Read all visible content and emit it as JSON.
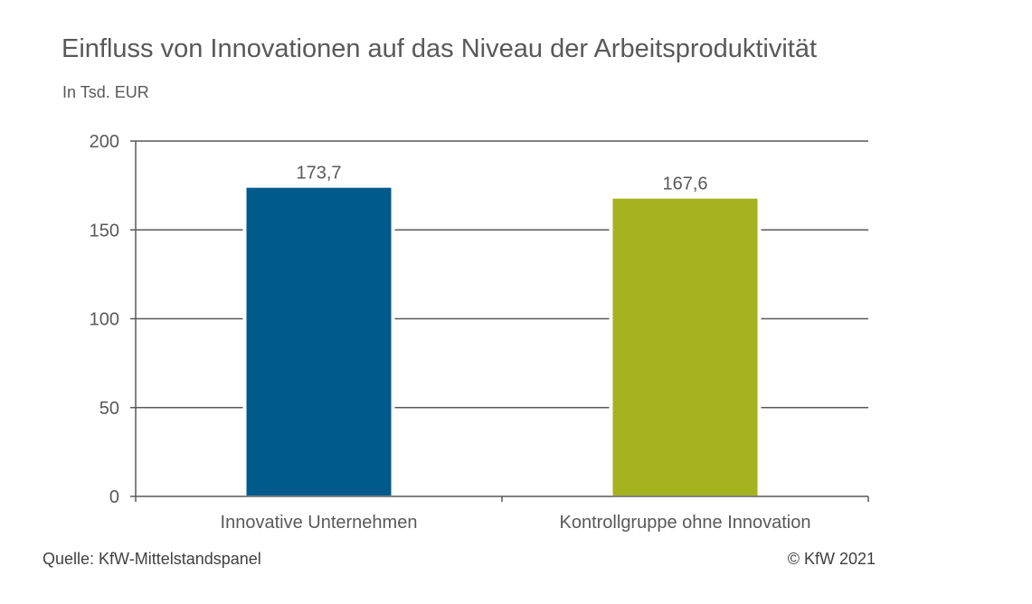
{
  "chart_data": {
    "type": "bar",
    "title": "Einfluss von Innovationen auf das Niveau der Arbeitsproduktivität",
    "subtitle": "In Tsd. EUR",
    "categories": [
      "Innovative Unternehmen",
      "Kontrollgruppe ohne Innovation"
    ],
    "values": [
      173.7,
      167.6
    ],
    "value_labels": [
      "173,7",
      "167,6"
    ],
    "bar_colors": [
      "#005A8C",
      "#A4B31E"
    ],
    "ylim": [
      0,
      200
    ],
    "yticks": [
      0,
      50,
      100,
      150,
      200
    ],
    "grid": true,
    "legend": "none"
  },
  "footer": {
    "source": "Quelle: KfW-Mittelstandspanel",
    "copyright": "© KfW 2021"
  }
}
